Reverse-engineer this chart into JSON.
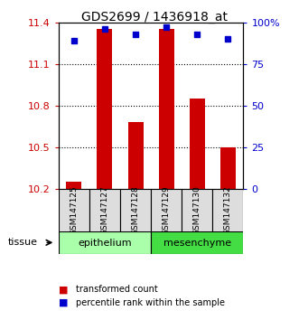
{
  "title": "GDS2699 / 1436918_at",
  "samples": [
    "GSM147125",
    "GSM147127",
    "GSM147128",
    "GSM147129",
    "GSM147130",
    "GSM147132"
  ],
  "transformed_counts": [
    10.25,
    11.35,
    10.68,
    11.35,
    10.85,
    10.5
  ],
  "percentile_ranks": [
    89,
    96,
    93,
    97,
    93,
    90
  ],
  "ymin": 10.2,
  "ymax": 11.4,
  "yticks": [
    10.2,
    10.5,
    10.8,
    11.1,
    11.4
  ],
  "right_yticks": [
    0,
    25,
    50,
    75,
    100
  ],
  "bar_color": "#cc0000",
  "dot_color": "#0000cc",
  "groups": [
    {
      "label": "epithelium",
      "indices": [
        0,
        1,
        2
      ],
      "color": "#aaffaa"
    },
    {
      "label": "mesenchyme",
      "indices": [
        3,
        4,
        5
      ],
      "color": "#44dd44"
    }
  ],
  "tissue_label": "tissue",
  "legend_bar_label": "transformed count",
  "legend_dot_label": "percentile rank within the sample",
  "background_color": "#ffffff",
  "tick_label_color_left": "#cc0000",
  "tick_label_color_right": "#0000cc",
  "sample_box_color": "#dddddd"
}
